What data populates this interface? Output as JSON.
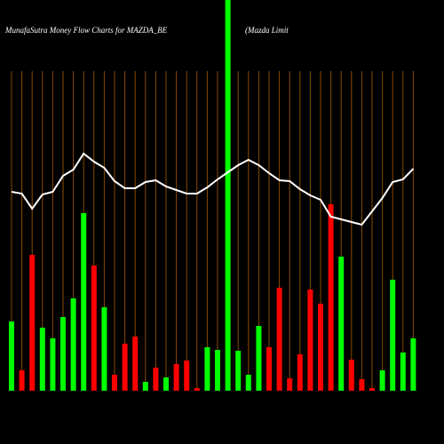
{
  "chart_data": {
    "type": "bar",
    "title": "MunafaSutra  Money  Flow  Charts for MAZDA_BE",
    "subtitle": "(Mazda  Limit",
    "values": [
      78,
      23,
      153,
      71,
      59,
      83,
      104,
      200,
      141,
      94,
      18,
      53,
      61,
      10,
      26,
      15,
      30,
      34,
      3,
      49,
      46,
      440,
      45,
      18,
      73,
      49,
      116,
      14,
      41,
      114,
      98,
      210,
      151,
      35,
      13,
      3,
      23,
      125,
      43,
      59
    ],
    "bar_colors": [
      "#00ff00",
      "#ff0000",
      "#ff0000",
      "#00ff00",
      "#00ff00",
      "#00ff00",
      "#00ff00",
      "#00ff00",
      "#ff0000",
      "#00ff00",
      "#ff0000",
      "#ff0000",
      "#ff0000",
      "#00ff00",
      "#ff0000",
      "#00ff00",
      "#ff0000",
      "#ff0000",
      "#ff0000",
      "#00ff00",
      "#00ff00",
      "#00ff00",
      "#00ff00",
      "#00ff00",
      "#00ff00",
      "#ff0000",
      "#ff0000",
      "#ff0000",
      "#ff0000",
      "#ff0000",
      "#ff0000",
      "#ff0000",
      "#00ff00",
      "#ff0000",
      "#ff0000",
      "#ff0000",
      "#00ff00",
      "#00ff00",
      "#00ff00",
      "#00ff00"
    ],
    "line_values": [
      224,
      222,
      205,
      221,
      224,
      242,
      249,
      267,
      258,
      251,
      236,
      228,
      228,
      235,
      237,
      230,
      226,
      222,
      222,
      229,
      238,
      246,
      254,
      260,
      254,
      245,
      237,
      236,
      227,
      220,
      215,
      196,
      193,
      190,
      187,
      202,
      217,
      235,
      238,
      250
    ],
    "line_color": "#ffffff",
    "grid_color": "#8b4a00",
    "ylim": [
      0,
      440
    ],
    "grid": true
  }
}
